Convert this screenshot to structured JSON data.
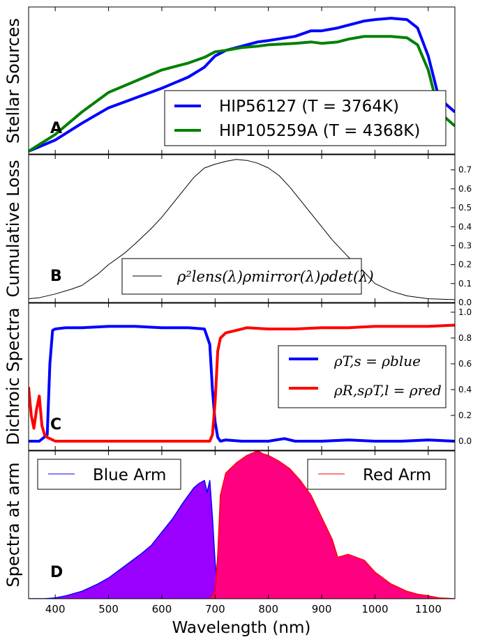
{
  "chart_data": [
    {
      "panel": "A",
      "type": "line",
      "ylabel": "Stellar Sources",
      "panel_letter": "A",
      "xlim": [
        350,
        1150
      ],
      "ylim": [
        0,
        1.05
      ],
      "y_ticks_shown": false,
      "legend_position": "lower-right",
      "series": [
        {
          "name": "HIP56127 (T = 3764K)",
          "color": "#0000ff",
          "x": [
            350,
            400,
            450,
            500,
            550,
            600,
            650,
            680,
            700,
            720,
            750,
            780,
            800,
            850,
            880,
            900,
            930,
            950,
            980,
            1000,
            1030,
            1060,
            1080,
            1100,
            1120,
            1150
          ],
          "y": [
            0.02,
            0.1,
            0.22,
            0.33,
            0.4,
            0.47,
            0.55,
            0.62,
            0.7,
            0.74,
            0.77,
            0.8,
            0.81,
            0.84,
            0.88,
            0.88,
            0.9,
            0.92,
            0.95,
            0.96,
            0.97,
            0.96,
            0.9,
            0.7,
            0.4,
            0.3
          ]
        },
        {
          "name": "HIP105259A (T = 4368K)",
          "color": "#008000",
          "x": [
            350,
            400,
            450,
            500,
            550,
            600,
            650,
            680,
            700,
            720,
            750,
            780,
            800,
            850,
            880,
            900,
            930,
            950,
            980,
            1000,
            1030,
            1060,
            1080,
            1100,
            1120,
            1150
          ],
          "y": [
            0.02,
            0.14,
            0.3,
            0.44,
            0.52,
            0.6,
            0.65,
            0.69,
            0.73,
            0.74,
            0.76,
            0.77,
            0.78,
            0.79,
            0.8,
            0.79,
            0.8,
            0.82,
            0.84,
            0.84,
            0.84,
            0.83,
            0.78,
            0.6,
            0.3,
            0.2
          ]
        }
      ]
    },
    {
      "panel": "B",
      "type": "line",
      "ylabel": "Cumulative Loss",
      "panel_letter": "B",
      "xlim": [
        350,
        1150
      ],
      "ylim": [
        0,
        0.78
      ],
      "yticks": [
        "0.0",
        "0.1",
        "0.2",
        "0.3",
        "0.4",
        "0.5",
        "0.6",
        "0.7"
      ],
      "ytick_values": [
        0.0,
        0.1,
        0.2,
        0.3,
        0.4,
        0.5,
        0.6,
        0.7
      ],
      "legend_position": "lower-center",
      "legend_label": "ρ²lens(λ)ρmirror(λ)ρdet(λ)",
      "series": [
        {
          "name": "ρ²lens(λ)ρmirror(λ)ρdet(λ)",
          "color": "#000000",
          "x": [
            350,
            370,
            400,
            430,
            450,
            480,
            500,
            530,
            550,
            580,
            600,
            620,
            640,
            660,
            680,
            700,
            720,
            740,
            760,
            780,
            800,
            820,
            840,
            860,
            880,
            900,
            920,
            950,
            980,
            1000,
            1030,
            1060,
            1100,
            1150
          ],
          "y": [
            0.02,
            0.025,
            0.045,
            0.07,
            0.09,
            0.15,
            0.2,
            0.26,
            0.31,
            0.39,
            0.45,
            0.52,
            0.59,
            0.66,
            0.71,
            0.73,
            0.745,
            0.755,
            0.75,
            0.735,
            0.71,
            0.67,
            0.61,
            0.54,
            0.47,
            0.4,
            0.33,
            0.24,
            0.16,
            0.1,
            0.06,
            0.035,
            0.02,
            0.015
          ]
        }
      ]
    },
    {
      "panel": "C",
      "type": "line",
      "ylabel": "Dichroic Spectra",
      "panel_letter": "C",
      "xlim": [
        350,
        1150
      ],
      "ylim": [
        -0.07,
        1.07
      ],
      "yticks": [
        "0.0",
        "0.2",
        "0.4",
        "0.6",
        "0.8",
        "1.0"
      ],
      "ytick_values": [
        0.0,
        0.2,
        0.4,
        0.6,
        0.8,
        1.0
      ],
      "legend_position": "center-right",
      "series": [
        {
          "name": "ρT,s = ρblue",
          "color": "#0000ff",
          "x": [
            350,
            370,
            385,
            390,
            395,
            400,
            420,
            450,
            500,
            550,
            600,
            650,
            680,
            690,
            695,
            700,
            705,
            710,
            720,
            750,
            800,
            830,
            850,
            900,
            950,
            1000,
            1050,
            1100,
            1150
          ],
          "y": [
            0.0,
            0.0,
            0.05,
            0.6,
            0.86,
            0.87,
            0.88,
            0.88,
            0.89,
            0.89,
            0.88,
            0.88,
            0.87,
            0.75,
            0.4,
            0.15,
            0.03,
            0.0,
            0.01,
            0.0,
            0.0,
            0.02,
            0.0,
            0.0,
            0.01,
            0.0,
            0.0,
            0.01,
            0.0
          ]
        },
        {
          "name": "ρR,sρT,l = ρred",
          "color": "#ff0000",
          "x": [
            350,
            355,
            360,
            365,
            370,
            375,
            380,
            385,
            390,
            400,
            450,
            500,
            550,
            600,
            650,
            680,
            690,
            695,
            700,
            705,
            710,
            720,
            740,
            760,
            800,
            850,
            900,
            950,
            1000,
            1050,
            1100,
            1150
          ],
          "y": [
            0.42,
            0.2,
            0.1,
            0.25,
            0.35,
            0.12,
            0.05,
            0.03,
            0.02,
            0.0,
            0.0,
            0.0,
            0.0,
            0.0,
            0.0,
            0.0,
            0.0,
            0.05,
            0.3,
            0.7,
            0.8,
            0.84,
            0.86,
            0.88,
            0.87,
            0.87,
            0.88,
            0.88,
            0.89,
            0.89,
            0.89,
            0.9
          ]
        }
      ]
    },
    {
      "panel": "D",
      "type": "area",
      "ylabel": "Spectra at arm",
      "panel_letter": "D",
      "xlabel": "Wavelength (nm)",
      "xlim": [
        350,
        1150
      ],
      "ylim": [
        0,
        1.0
      ],
      "xticks": [
        "400",
        "500",
        "600",
        "700",
        "800",
        "900",
        "1000",
        "1100"
      ],
      "xtick_values": [
        400,
        500,
        600,
        700,
        800,
        900,
        1000,
        1100
      ],
      "y_ticks_shown": false,
      "legend_position_blue": "top-left",
      "legend_position_red": "top-right",
      "series": [
        {
          "name": "Blue Arm",
          "color": "#0000ff",
          "fill": "#9900ff",
          "x": [
            350,
            380,
            400,
            420,
            450,
            480,
            500,
            530,
            560,
            580,
            600,
            620,
            640,
            660,
            670,
            680,
            685,
            690,
            695,
            700,
            705,
            710,
            720
          ],
          "y": [
            0.0,
            0.0,
            0.005,
            0.02,
            0.05,
            0.1,
            0.14,
            0.22,
            0.3,
            0.36,
            0.45,
            0.54,
            0.65,
            0.75,
            0.78,
            0.8,
            0.72,
            0.8,
            0.55,
            0.25,
            0.05,
            0.0,
            0.0
          ]
        },
        {
          "name": "Red Arm",
          "color": "#ff0000",
          "fill": "#ff0080",
          "x": [
            690,
            700,
            705,
            710,
            720,
            740,
            760,
            780,
            790,
            800,
            820,
            840,
            860,
            880,
            900,
            920,
            930,
            950,
            980,
            1000,
            1030,
            1060,
            1080,
            1100,
            1120,
            1150
          ],
          "y": [
            0.0,
            0.05,
            0.3,
            0.7,
            0.85,
            0.92,
            0.97,
            1.0,
            0.98,
            0.97,
            0.93,
            0.88,
            0.8,
            0.7,
            0.55,
            0.4,
            0.28,
            0.3,
            0.26,
            0.18,
            0.1,
            0.05,
            0.03,
            0.02,
            0.005,
            0.0
          ]
        }
      ]
    }
  ]
}
